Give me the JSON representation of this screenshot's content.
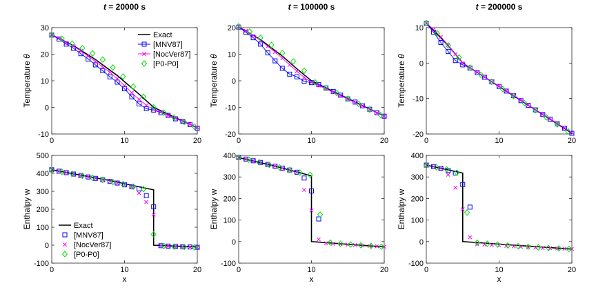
{
  "chart_data": [
    {
      "type": "line",
      "row": 0,
      "col": 0,
      "title_var": "t",
      "title_rest": " = 20000 s",
      "ylabel_prefix": "Temperature ",
      "ylabel_var": "θ",
      "xlabel": "",
      "xlim": [
        0,
        20
      ],
      "ylim": [
        -10,
        30
      ],
      "xticks": [
        0,
        10,
        20
      ],
      "yticks": [
        -10,
        0,
        10,
        20,
        30
      ],
      "legend": "top-right",
      "exact": [
        [
          0,
          27.3
        ],
        [
          3,
          23.2
        ],
        [
          6,
          18.0
        ],
        [
          9,
          12.0
        ],
        [
          12,
          5.0
        ],
        [
          14,
          0
        ],
        [
          20,
          -7.7
        ]
      ],
      "series": [
        {
          "name": "[MNV87]",
          "x": [
            0,
            1,
            2,
            3,
            4,
            5,
            6,
            7,
            8,
            9,
            10,
            11,
            12,
            13,
            14,
            15,
            16,
            17,
            18,
            19,
            20
          ],
          "y": [
            27.2,
            25.7,
            23.8,
            22.2,
            20.2,
            18.2,
            16.0,
            13.8,
            11.5,
            9.5,
            7.0,
            4.0,
            1.3,
            -0.5,
            -1.0,
            -2.0,
            -3.0,
            -4.3,
            -5.2,
            -6.5,
            -7.8
          ]
        },
        {
          "name": "[NocVer87]",
          "x": [
            0,
            1,
            2,
            3,
            4,
            5,
            6,
            7,
            8,
            9,
            10,
            11,
            12,
            13,
            14,
            15,
            16,
            17,
            18,
            19,
            20
          ],
          "y": [
            27.3,
            26.0,
            24.3,
            23.0,
            21.2,
            19.3,
            17.2,
            15.2,
            13.2,
            10.8,
            8.2,
            5.5,
            3.0,
            0.8,
            -0.8,
            -1.8,
            -3.0,
            -4.0,
            -5.2,
            -6.3,
            -7.6
          ]
        },
        {
          "name": "[P0-P0]",
          "x": [
            0,
            1.4,
            2.8,
            4.2,
            5.6,
            7.0,
            8.4,
            9.8,
            11.2,
            12.6,
            14.0,
            15.4,
            16.8,
            18.2,
            19.6
          ],
          "y": [
            27.3,
            25.8,
            24.0,
            22.3,
            20.3,
            18.0,
            15.0,
            11.6,
            7.8,
            4.0,
            0,
            -2.0,
            -3.8,
            -5.5,
            -7.2
          ]
        }
      ]
    },
    {
      "type": "line",
      "row": 0,
      "col": 1,
      "title_var": "t",
      "title_rest": " = 100000 s",
      "ylabel_prefix": "Temperature ",
      "ylabel_var": "θ",
      "xlabel": "",
      "xlim": [
        0,
        20
      ],
      "ylim": [
        -20,
        20
      ],
      "xticks": [
        0,
        10,
        20
      ],
      "yticks": [
        -20,
        -10,
        0,
        10,
        20
      ],
      "exact": [
        [
          0,
          20.3
        ],
        [
          3,
          15.5
        ],
        [
          6,
          9.3
        ],
        [
          8,
          4.5
        ],
        [
          10,
          0
        ],
        [
          20,
          -13.3
        ]
      ],
      "series": [
        {
          "name": "[MNV87]",
          "x": [
            0,
            1,
            2,
            3,
            4,
            5,
            6,
            7,
            8,
            9,
            10,
            11,
            12,
            13,
            14,
            15,
            16,
            17,
            18,
            19,
            20
          ],
          "y": [
            20.2,
            18.2,
            16.2,
            13.8,
            10.5,
            7.5,
            4.7,
            2.5,
            1.5,
            -0.2,
            -0.7,
            -1.4,
            -2.7,
            -4.0,
            -5.4,
            -6.8,
            -8.0,
            -9.4,
            -10.7,
            -12.0,
            -13.3
          ]
        },
        {
          "name": "[NocVer87]",
          "x": [
            0,
            1,
            2,
            3,
            4,
            5,
            6,
            7,
            8,
            9,
            10,
            11,
            12,
            13,
            14,
            15,
            16,
            17,
            18,
            19,
            20
          ],
          "y": [
            20.4,
            18.8,
            17.0,
            15.2,
            13.0,
            10.8,
            8.5,
            6.0,
            3.6,
            1.3,
            -0.6,
            -1.8,
            -3.0,
            -4.3,
            -5.6,
            -6.9,
            -8.2,
            -9.5,
            -10.8,
            -12.1,
            -13.3
          ]
        },
        {
          "name": "[P0-P0]",
          "x": [
            0,
            1.5,
            3,
            4.5,
            6,
            7.5,
            9,
            10.5,
            12,
            13.5,
            15,
            16.5,
            18,
            19.5
          ],
          "y": [
            20.5,
            18.5,
            16.2,
            13.5,
            10.5,
            7.3,
            3.8,
            -0.6,
            -2.7,
            -4.6,
            -6.7,
            -8.7,
            -10.8,
            -12.9
          ]
        }
      ]
    },
    {
      "type": "line",
      "row": 0,
      "col": 2,
      "title_var": "t",
      "title_rest": " = 200000 s",
      "ylabel_prefix": "Temperature ",
      "ylabel_var": "θ",
      "xlabel": "",
      "xlim": [
        0,
        20
      ],
      "ylim": [
        -20,
        10
      ],
      "xticks": [
        0,
        10,
        20
      ],
      "yticks": [
        -20,
        -10,
        0,
        10
      ],
      "exact": [
        [
          0,
          11.3
        ],
        [
          3,
          5.0
        ],
        [
          5,
          0
        ],
        [
          20,
          -19.8
        ]
      ],
      "series": [
        {
          "name": "[MNV87]",
          "x": [
            0,
            1,
            2,
            3,
            4,
            5,
            6,
            7,
            8,
            9,
            10,
            11,
            12,
            13,
            14,
            15,
            16,
            17,
            18,
            19,
            20
          ],
          "y": [
            11.2,
            8.7,
            5.8,
            3.3,
            0.7,
            -0.5,
            -1.4,
            -2.7,
            -4.0,
            -5.3,
            -6.6,
            -7.9,
            -9.2,
            -10.6,
            -11.9,
            -13.2,
            -14.5,
            -15.8,
            -17.1,
            -18.4,
            -19.8
          ]
        },
        {
          "name": "[NocVer87]",
          "x": [
            0,
            1,
            2,
            3,
            4,
            5,
            6,
            7,
            8,
            9,
            10,
            11,
            12,
            13,
            14,
            15,
            16,
            17,
            18,
            19,
            20
          ],
          "y": [
            11.3,
            9.5,
            7.4,
            5.1,
            2.5,
            0,
            -1.3,
            -2.6,
            -3.9,
            -5.2,
            -6.5,
            -7.8,
            -9.1,
            -10.4,
            -11.8,
            -13.1,
            -14.4,
            -15.7,
            -17.0,
            -18.3,
            -19.6
          ]
        },
        {
          "name": "[P0-P0]",
          "x": [
            0,
            1.5,
            3,
            4.5,
            6,
            7.5,
            9,
            10.5,
            12,
            13.5,
            15,
            16.5,
            18,
            19.5
          ],
          "y": [
            11.3,
            8.4,
            5.0,
            1.6,
            -1.3,
            -3.3,
            -5.3,
            -7.3,
            -9.3,
            -11.3,
            -13.3,
            -15.3,
            -17.3,
            -19.3
          ]
        }
      ]
    },
    {
      "type": "line",
      "row": 1,
      "col": 0,
      "ylabel": "Enthalpy w",
      "xlabel": "x",
      "xlim": [
        0,
        20
      ],
      "ylim": [
        -100,
        500
      ],
      "xticks": [
        0,
        10,
        20
      ],
      "yticks": [
        -100,
        0,
        100,
        200,
        300,
        400,
        500
      ],
      "legend": "bottom-left",
      "exact": [
        [
          0,
          420
        ],
        [
          4,
          390
        ],
        [
          8,
          360
        ],
        [
          12,
          325
        ],
        [
          14,
          308
        ],
        [
          14,
          0
        ],
        [
          20,
          -10
        ]
      ],
      "series": [
        {
          "name": "[MNV87]",
          "x": [
            0,
            1,
            2,
            3,
            4,
            5,
            6,
            7,
            8,
            9,
            10,
            11,
            12,
            13,
            14,
            15,
            16,
            17,
            18,
            19,
            20
          ],
          "y": [
            420,
            412,
            404,
            396,
            388,
            380,
            372,
            364,
            355,
            346,
            336,
            325,
            314,
            276,
            214,
            -3,
            -5,
            -7,
            -8,
            -10,
            -12
          ]
        },
        {
          "name": "[NocVer87]",
          "x": [
            0,
            1,
            2,
            3,
            4,
            5,
            6,
            7,
            8,
            9,
            10,
            11,
            12,
            13,
            14,
            15,
            16,
            17,
            18,
            19,
            20
          ],
          "y": [
            420,
            412,
            404,
            396,
            388,
            380,
            372,
            364,
            355,
            346,
            336,
            325,
            290,
            240,
            170,
            -3,
            -5,
            -7,
            -8,
            -10,
            -12
          ]
        },
        {
          "name": "[P0-P0]",
          "x": [
            0,
            1.4,
            2.8,
            4.2,
            5.6,
            7.0,
            8.4,
            9.8,
            11.2,
            12.6,
            14.0,
            15.4,
            16.8,
            18.2,
            19.6
          ],
          "y": [
            418,
            408,
            398,
            387,
            376,
            364,
            352,
            340,
            326,
            312,
            60,
            -5,
            -8,
            -10,
            -12
          ]
        }
      ]
    },
    {
      "type": "line",
      "row": 1,
      "col": 1,
      "ylabel": "Enthalpy w",
      "xlabel": "x",
      "xlim": [
        0,
        20
      ],
      "ylim": [
        -100,
        400
      ],
      "xticks": [
        0,
        10,
        20
      ],
      "yticks": [
        -100,
        0,
        100,
        200,
        300,
        400
      ],
      "exact": [
        [
          0,
          390
        ],
        [
          5,
          350
        ],
        [
          10,
          305
        ],
        [
          10,
          0
        ],
        [
          20,
          -25
        ]
      ],
      "series": [
        {
          "name": "[MNV87]",
          "x": [
            0,
            1,
            2,
            3,
            4,
            5,
            6,
            7,
            8,
            9,
            10,
            11
          ],
          "y": [
            390,
            383,
            375,
            367,
            358,
            350,
            341,
            332,
            322,
            295,
            235,
            105
          ]
        },
        {
          "name": "[NocVer87]",
          "x": [
            0,
            1,
            2,
            3,
            4,
            5,
            6,
            7,
            8,
            9,
            10,
            11,
            12,
            13,
            14,
            15,
            16,
            17,
            18,
            19,
            20
          ],
          "y": [
            390,
            383,
            375,
            367,
            358,
            350,
            341,
            332,
            322,
            240,
            145,
            10,
            -8,
            -10,
            -12,
            -14,
            -16,
            -18,
            -20,
            -22,
            -24
          ]
        },
        {
          "name": "[P0-P0]",
          "x": [
            0,
            1.4,
            2.8,
            4.2,
            5.6,
            7.0,
            8.4,
            9.8,
            11.2,
            12.6,
            14.0,
            15.4,
            16.8,
            18.2,
            19.6
          ],
          "y": [
            390,
            380,
            368,
            356,
            344,
            332,
            320,
            310,
            125,
            -5,
            -10,
            -14,
            -17,
            -20,
            -24
          ]
        }
      ]
    },
    {
      "type": "line",
      "row": 1,
      "col": 2,
      "ylabel": "Enthalpy w",
      "xlabel": "x",
      "xlim": [
        0,
        20
      ],
      "ylim": [
        -100,
        400
      ],
      "xticks": [
        0,
        10,
        20
      ],
      "yticks": [
        -100,
        0,
        100,
        200,
        300,
        400
      ],
      "exact": [
        [
          0,
          355
        ],
        [
          5,
          318
        ],
        [
          5,
          0
        ],
        [
          20,
          -35
        ]
      ],
      "series": [
        {
          "name": "[MNV87]",
          "x": [
            0,
            1,
            2,
            3,
            4,
            5,
            6
          ],
          "y": [
            355,
            348,
            340,
            330,
            318,
            265,
            160
          ]
        },
        {
          "name": "[NocVer87]",
          "x": [
            0,
            1,
            2,
            3,
            4,
            5,
            6,
            7,
            8,
            9,
            10,
            11,
            12,
            13,
            14,
            15,
            16,
            17,
            18,
            19,
            20
          ],
          "y": [
            355,
            348,
            340,
            310,
            250,
            150,
            20,
            -12,
            -14,
            -16,
            -18,
            -20,
            -22,
            -24,
            -26,
            -28,
            -30,
            -31,
            -32,
            -33,
            -34
          ]
        },
        {
          "name": "[P0-P0]",
          "x": [
            0,
            1.4,
            2.8,
            4.2,
            5.6,
            7.0,
            8.4,
            9.8,
            11.2,
            12.6,
            14.0,
            15.4,
            16.8,
            18.2,
            19.6
          ],
          "y": [
            353,
            345,
            335,
            320,
            135,
            -5,
            -10,
            -14,
            -18,
            -21,
            -24,
            -27,
            -30,
            -32,
            -34
          ]
        }
      ]
    }
  ],
  "legend": {
    "exact_label": "Exact",
    "series_labels": [
      "[MNV87]",
      "[NocVer87]",
      "[P0-P0]"
    ]
  },
  "colors": {
    "exact": "#000000",
    "mnv87": "#0000ff",
    "nocver87": "#ff00ff",
    "p0p0": "#00e000"
  }
}
